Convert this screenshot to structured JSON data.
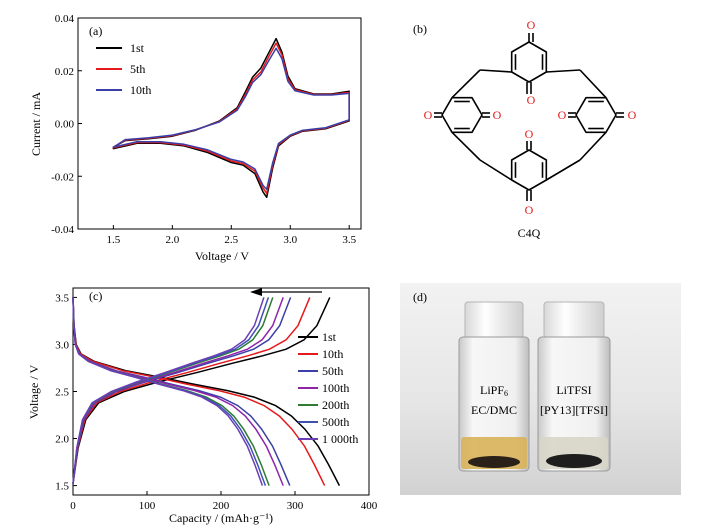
{
  "chart_data": [
    {
      "panel": "(a)",
      "type": "line",
      "xlabel": "Voltage / V",
      "ylabel": "Current / mA",
      "xlim": [
        1.2,
        3.6
      ],
      "ylim": [
        -0.04,
        0.04
      ],
      "x_ticks": [
        "1.5",
        "2.0",
        "2.5",
        "3.0",
        "3.5"
      ],
      "y_ticks": [
        "-0.04",
        "-0.02",
        "0.00",
        "0.02",
        "0.04"
      ],
      "legend_position": "top-left",
      "series": [
        {
          "name": "1st",
          "color": "#000000",
          "anodic": [
            [
              1.5,
              -0.009
            ],
            [
              1.6,
              -0.0065
            ],
            [
              1.8,
              -0.0058
            ],
            [
              2.0,
              -0.0048
            ],
            [
              2.2,
              -0.0025
            ],
            [
              2.4,
              0.001
            ],
            [
              2.55,
              0.006
            ],
            [
              2.62,
              0.012
            ],
            [
              2.68,
              0.0175
            ],
            [
              2.75,
              0.021
            ],
            [
              2.82,
              0.027
            ],
            [
              2.88,
              0.0322
            ],
            [
              2.93,
              0.027
            ],
            [
              2.98,
              0.018
            ],
            [
              3.04,
              0.0132
            ],
            [
              3.2,
              0.0112
            ],
            [
              3.35,
              0.0112
            ],
            [
              3.5,
              0.0122
            ]
          ],
          "cathodic": [
            [
              3.5,
              0.001
            ],
            [
              3.3,
              -0.002
            ],
            [
              3.1,
              -0.003
            ],
            [
              3.0,
              -0.0048
            ],
            [
              2.9,
              -0.0085
            ],
            [
              2.85,
              -0.017
            ],
            [
              2.8,
              -0.028
            ],
            [
              2.77,
              -0.026
            ],
            [
              2.7,
              -0.019
            ],
            [
              2.6,
              -0.0158
            ],
            [
              2.5,
              -0.0148
            ],
            [
              2.3,
              -0.011
            ],
            [
              2.1,
              -0.0085
            ],
            [
              1.9,
              -0.0075
            ],
            [
              1.7,
              -0.0075
            ],
            [
              1.5,
              -0.0095
            ]
          ]
        },
        {
          "name": "5th",
          "color": "#e41a1c",
          "anodic": [
            [
              1.5,
              -0.009
            ],
            [
              1.6,
              -0.0063
            ],
            [
              1.8,
              -0.0056
            ],
            [
              2.0,
              -0.0046
            ],
            [
              2.2,
              -0.0024
            ],
            [
              2.4,
              0.0008
            ],
            [
              2.55,
              0.0055
            ],
            [
              2.62,
              0.011
            ],
            [
              2.68,
              0.0165
            ],
            [
              2.75,
              0.0195
            ],
            [
              2.82,
              0.0255
            ],
            [
              2.88,
              0.0305
            ],
            [
              2.93,
              0.026
            ],
            [
              2.98,
              0.017
            ],
            [
              3.04,
              0.0128
            ],
            [
              3.2,
              0.011
            ],
            [
              3.35,
              0.011
            ],
            [
              3.5,
              0.0118
            ]
          ],
          "cathodic": [
            [
              3.5,
              0.0012
            ],
            [
              3.3,
              -0.0018
            ],
            [
              3.1,
              -0.0028
            ],
            [
              3.0,
              -0.0046
            ],
            [
              2.9,
              -0.008
            ],
            [
              2.85,
              -0.016
            ],
            [
              2.8,
              -0.0265
            ],
            [
              2.77,
              -0.0245
            ],
            [
              2.7,
              -0.018
            ],
            [
              2.6,
              -0.0152
            ],
            [
              2.5,
              -0.0142
            ],
            [
              2.3,
              -0.0105
            ],
            [
              2.1,
              -0.0082
            ],
            [
              1.9,
              -0.0072
            ],
            [
              1.7,
              -0.0072
            ],
            [
              1.5,
              -0.0092
            ]
          ]
        },
        {
          "name": "10th",
          "color": "#3b3fa8",
          "anodic": [
            [
              1.5,
              -0.009
            ],
            [
              1.6,
              -0.0061
            ],
            [
              1.8,
              -0.0054
            ],
            [
              2.0,
              -0.0044
            ],
            [
              2.2,
              -0.0023
            ],
            [
              2.4,
              0.0006
            ],
            [
              2.55,
              0.005
            ],
            [
              2.62,
              0.0102
            ],
            [
              2.68,
              0.0155
            ],
            [
              2.75,
              0.0185
            ],
            [
              2.82,
              0.024
            ],
            [
              2.88,
              0.0285
            ],
            [
              2.93,
              0.0245
            ],
            [
              2.98,
              0.016
            ],
            [
              3.04,
              0.0124
            ],
            [
              3.2,
              0.0108
            ],
            [
              3.35,
              0.0108
            ],
            [
              3.5,
              0.0114
            ]
          ],
          "cathodic": [
            [
              3.5,
              0.0014
            ],
            [
              3.3,
              -0.0016
            ],
            [
              3.1,
              -0.0026
            ],
            [
              3.0,
              -0.0044
            ],
            [
              2.9,
              -0.0076
            ],
            [
              2.85,
              -0.015
            ],
            [
              2.8,
              -0.025
            ],
            [
              2.77,
              -0.0235
            ],
            [
              2.7,
              -0.0172
            ],
            [
              2.6,
              -0.0146
            ],
            [
              2.5,
              -0.0136
            ],
            [
              2.3,
              -0.01
            ],
            [
              2.1,
              -0.0079
            ],
            [
              1.9,
              -0.0069
            ],
            [
              1.7,
              -0.0069
            ],
            [
              1.5,
              -0.009
            ]
          ]
        }
      ]
    },
    {
      "panel": "(b)",
      "type": "structure",
      "label": "C4Q",
      "atom_label": "O"
    },
    {
      "panel": "(c)",
      "type": "line",
      "xlabel": "Capacity / (mAh·g⁻¹)",
      "ylabel": "Voltage / V",
      "xlim": [
        0,
        400
      ],
      "ylim": [
        1.4,
        3.6
      ],
      "x_ticks": [
        "0",
        "100",
        "200",
        "300",
        "400"
      ],
      "y_ticks": [
        "1.5",
        "2.0",
        "2.5",
        "3.0",
        "3.5"
      ],
      "legend_position": "right",
      "arrow_direction": "left",
      "series": [
        {
          "name": "1st",
          "color": "#000000",
          "capacity": 360,
          "charge_capacity": 347
        },
        {
          "name": "10th",
          "color": "#e41a1c",
          "capacity": 340,
          "charge_capacity": 320
        },
        {
          "name": "50th",
          "color": "#3b3fa8",
          "capacity": 293,
          "charge_capacity": 294
        },
        {
          "name": "100th",
          "color": "#8e24aa",
          "capacity": 284,
          "charge_capacity": 284
        },
        {
          "name": "200th",
          "color": "#2e7d32",
          "capacity": 265,
          "charge_capacity": 270
        },
        {
          "name": "500th",
          "color": "#3f51b5",
          "capacity": 260,
          "charge_capacity": 264
        },
        {
          "name": "1 000th",
          "color": "#6a3fb5",
          "capacity": 256,
          "charge_capacity": 258
        }
      ]
    },
    {
      "panel": "(d)",
      "type": "photo",
      "vials": [
        {
          "line1": "LiPF",
          "sub": "6",
          "line2": "EC/DMC",
          "liquid": "#d9b25a"
        },
        {
          "line1": "LiTFSI",
          "sub": "",
          "line2": "[PY13][TFSI]",
          "liquid": "#d8d6c8"
        }
      ]
    }
  ]
}
